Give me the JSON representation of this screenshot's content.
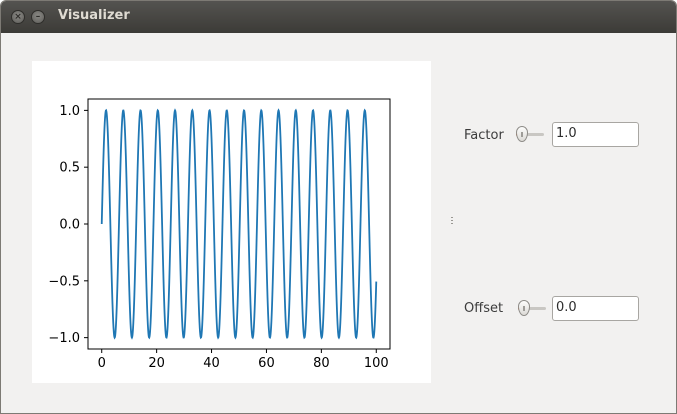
{
  "window": {
    "title": "Visualizer"
  },
  "controls": {
    "factor": {
      "label": "Factor",
      "value": "1.0",
      "slider_fraction": 0.02
    },
    "offset": {
      "label": "Offset",
      "value": "0.0",
      "slider_fraction": 0.0
    }
  },
  "colors": {
    "line": "#1f77b4",
    "slider_accent": "#e8622c"
  },
  "chart_data": {
    "type": "line",
    "title": "",
    "xlabel": "",
    "ylabel": "",
    "xlim": [
      -5,
      105
    ],
    "ylim": [
      -1.1,
      1.1
    ],
    "x_ticks": [
      0,
      20,
      40,
      60,
      80,
      100
    ],
    "x_tick_labels": [
      "0",
      "20",
      "40",
      "60",
      "80",
      "100"
    ],
    "y_ticks": [
      -1.0,
      -0.5,
      0.0,
      0.5,
      1.0
    ],
    "y_tick_labels": [
      "−1.0",
      "−0.5",
      "0.0",
      "0.5",
      "1.0"
    ],
    "grid": false,
    "series": [
      {
        "function": "sin(x)",
        "x_start": 0,
        "x_end": 100,
        "samples": 1000
      }
    ]
  }
}
